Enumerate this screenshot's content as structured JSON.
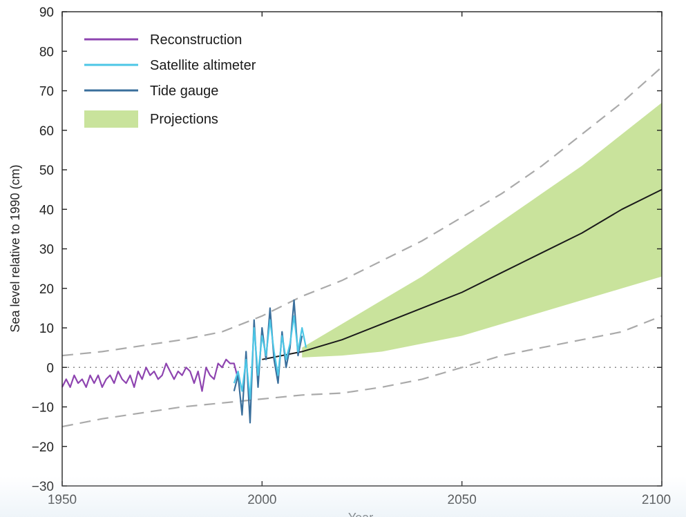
{
  "chart_data": {
    "type": "line",
    "title": "",
    "xlabel": "Year",
    "ylabel": "Sea level relative to 1990 (cm)",
    "xlim": [
      1950,
      2100
    ],
    "ylim": [
      -30,
      90
    ],
    "x_ticks": [
      1950,
      2000,
      2050,
      2100
    ],
    "y_ticks": [
      -30,
      -20,
      -10,
      0,
      10,
      20,
      30,
      40,
      50,
      60,
      70,
      80,
      90
    ],
    "x_tick_labels": [
      "1950",
      "2000",
      "2050",
      "2100"
    ],
    "y_tick_labels": [
      "−30",
      "−20",
      "−10",
      "0",
      "10",
      "20",
      "30",
      "40",
      "50",
      "60",
      "70",
      "80",
      "90"
    ],
    "grid": false,
    "legend_position": "top-left",
    "legend": [
      {
        "name": "Reconstruction",
        "kind": "line",
        "color": "#8e44b0"
      },
      {
        "name": "Satellite altimeter",
        "kind": "line",
        "color": "#4cc6e6"
      },
      {
        "name": "Tide gauge",
        "kind": "line",
        "color": "#3a6f9c"
      },
      {
        "name": "Projections",
        "kind": "band",
        "color": "#c9e39c"
      }
    ],
    "series": [
      {
        "name": "Reconstruction",
        "color": "#8e44b0",
        "x": [
          1950,
          1951,
          1952,
          1953,
          1954,
          1955,
          1956,
          1957,
          1958,
          1959,
          1960,
          1961,
          1962,
          1963,
          1964,
          1965,
          1966,
          1967,
          1968,
          1969,
          1970,
          1971,
          1972,
          1973,
          1974,
          1975,
          1976,
          1977,
          1978,
          1979,
          1980,
          1981,
          1982,
          1983,
          1984,
          1985,
          1986,
          1987,
          1988,
          1989,
          1990,
          1991,
          1992,
          1993,
          1994
        ],
        "values": [
          -5,
          -3,
          -5,
          -2,
          -4,
          -3,
          -5,
          -2,
          -4,
          -2,
          -5,
          -3,
          -2,
          -4,
          -1,
          -3,
          -4,
          -2,
          -5,
          -1,
          -3,
          0,
          -2,
          -1,
          -3,
          -2,
          1,
          -1,
          -3,
          -1,
          -2,
          0,
          -1,
          -4,
          -1,
          -6,
          0,
          -2,
          -3,
          1,
          0,
          2,
          1,
          1,
          -3
        ]
      },
      {
        "name": "Satellite altimeter",
        "color": "#4cc6e6",
        "x": [
          1993,
          1994,
          1995,
          1996,
          1997,
          1998,
          1999,
          2000,
          2001,
          2002,
          2003,
          2004,
          2005,
          2006,
          2007,
          2008,
          2009,
          2010,
          2011
        ],
        "values": [
          -4,
          -1,
          -6,
          2,
          -8,
          10,
          -2,
          8,
          3,
          12,
          4,
          -2,
          8,
          2,
          6,
          13,
          4,
          10,
          5
        ]
      },
      {
        "name": "Tide gauge",
        "color": "#3a6f9c",
        "x": [
          1993,
          1994,
          1995,
          1996,
          1997,
          1998,
          1999,
          2000,
          2001,
          2002,
          2003,
          2004,
          2005,
          2006,
          2007,
          2008,
          2009,
          2010
        ],
        "values": [
          -6,
          -2,
          -12,
          4,
          -14,
          12,
          -5,
          10,
          2,
          15,
          2,
          -4,
          9,
          0,
          5,
          17,
          3,
          8
        ]
      },
      {
        "name": "Projection median",
        "color": "#1a1a1a",
        "x": [
          2000,
          2010,
          2020,
          2030,
          2040,
          2050,
          2060,
          2070,
          2080,
          2090,
          2100
        ],
        "values": [
          2,
          4,
          7,
          11,
          15,
          19,
          24,
          29,
          34,
          40,
          45
        ]
      }
    ],
    "bands": [
      {
        "name": "Projections",
        "color": "#c9e39c",
        "x": [
          2010,
          2020,
          2030,
          2040,
          2050,
          2060,
          2070,
          2080,
          2090,
          2100
        ],
        "lower": [
          2.5,
          3,
          4,
          6,
          8,
          11,
          14,
          17,
          20,
          23
        ],
        "upper": [
          5,
          11,
          17,
          23,
          30,
          37,
          44,
          51,
          59,
          67
        ]
      },
      {
        "name": "Upper bound",
        "style": "dashed",
        "color": "#aaaaaa",
        "x": [
          1950,
          1960,
          1970,
          1980,
          1990,
          2000,
          2010,
          2020,
          2030,
          2040,
          2050,
          2060,
          2070,
          2080,
          2090,
          2100
        ],
        "values": [
          3,
          4,
          5.5,
          7,
          9,
          13,
          18,
          22,
          27,
          32,
          38,
          44,
          51,
          59,
          67,
          76
        ]
      },
      {
        "name": "Lower bound",
        "style": "dashed",
        "color": "#aaaaaa",
        "x": [
          1950,
          1960,
          1970,
          1980,
          1990,
          2000,
          2010,
          2020,
          2030,
          2040,
          2050,
          2060,
          2070,
          2080,
          2090,
          2100
        ],
        "values": [
          -15,
          -13,
          -11.5,
          -10,
          -9,
          -8,
          -7,
          -6.5,
          -5,
          -3,
          0,
          3,
          5,
          7,
          9,
          13
        ]
      }
    ],
    "reference_line": {
      "y": 0,
      "style": "dotted",
      "color": "#888888"
    }
  }
}
